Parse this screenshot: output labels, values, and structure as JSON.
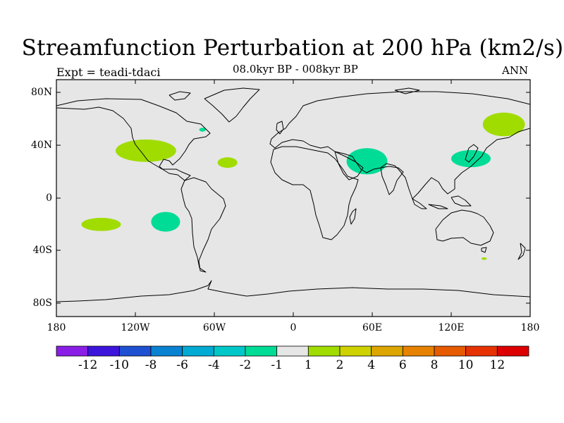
{
  "title": "Streamfunction Perturbation at 200 hPa (km2/s)",
  "left_label": "Expt = teadi-tdaci",
  "center_label": "08.0kyr BP - 008kyr BP",
  "right_label": "ANN",
  "chart_data": {
    "type": "contour-map",
    "title": "Streamfunction Perturbation at 200 hPa (km2/s)",
    "subtitle": "08.0kyr BP - 008kyr BP",
    "experiment": "Expt = teadi-tdaci",
    "season": "ANN",
    "projection": "cylindrical-equidistant",
    "lon_range": [
      -180,
      180
    ],
    "lat_range": [
      -90,
      90
    ],
    "x_ticks": [
      "180",
      "120W",
      "60W",
      "0",
      "60E",
      "120E",
      "180"
    ],
    "y_ticks": [
      "80N",
      "40N",
      "0",
      "40S",
      "80S"
    ],
    "colorbar": {
      "levels": [
        "-12",
        "-10",
        "-8",
        "-6",
        "-4",
        "-2",
        "-1",
        "1",
        "2",
        "4",
        "6",
        "8",
        "10",
        "12"
      ],
      "colors": [
        "#8a1ee6",
        "#3c14dc",
        "#1e50d2",
        "#0a82d2",
        "#00aad2",
        "#00c8c8",
        "#00dc96",
        "#e6e6e6",
        "#a0dc00",
        "#cdd200",
        "#dca500",
        "#e68200",
        "#e65a00",
        "#e63200",
        "#dc0000"
      ]
    },
    "features": [
      {
        "name": "north-pacific-positive",
        "class": "1 to 2",
        "color": "#a0dc00",
        "center_lon": -112,
        "center_lat": 36,
        "rx_deg": 23,
        "ry_deg": 8.5
      },
      {
        "name": "mid-atlantic-positive",
        "class": "1 to 2",
        "color": "#a0dc00",
        "center_lon": -50,
        "center_lat": 27,
        "rx_deg": 7.5,
        "ry_deg": 4
      },
      {
        "name": "south-pacific-positive",
        "class": "1 to 2",
        "color": "#a0dc00",
        "center_lon": -146,
        "center_lat": -20,
        "rx_deg": 15,
        "ry_deg": 5
      },
      {
        "name": "kamchatka-positive",
        "class": "1 to 2",
        "color": "#a0dc00",
        "center_lon": 160,
        "center_lat": 56,
        "rx_deg": 16,
        "ry_deg": 9
      },
      {
        "name": "tasmania-positive",
        "class": "1 to 2",
        "color": "#a0dc00",
        "center_lon": 145,
        "center_lat": -46,
        "rx_deg": 2,
        "ry_deg": 1
      },
      {
        "name": "arabia-negative",
        "class": "-2 to -1",
        "color": "#00dc96",
        "center_lon": 56,
        "center_lat": 28,
        "rx_deg": 15.5,
        "ry_deg": 10
      },
      {
        "name": "east-asia-negative",
        "class": "-2 to -1",
        "color": "#00dc96",
        "center_lon": 135,
        "center_lat": 30,
        "rx_deg": 15,
        "ry_deg": 6.5
      },
      {
        "name": "south-east-pacific-negative",
        "class": "-2 to -1",
        "color": "#00dc96",
        "center_lon": -97,
        "center_lat": -18,
        "rx_deg": 11,
        "ry_deg": 7.5
      },
      {
        "name": "labrador-negative",
        "class": "-2 to -1",
        "color": "#00dc96",
        "center_lon": -69,
        "center_lat": 52,
        "rx_deg": 2.5,
        "ry_deg": 1.5
      }
    ]
  }
}
